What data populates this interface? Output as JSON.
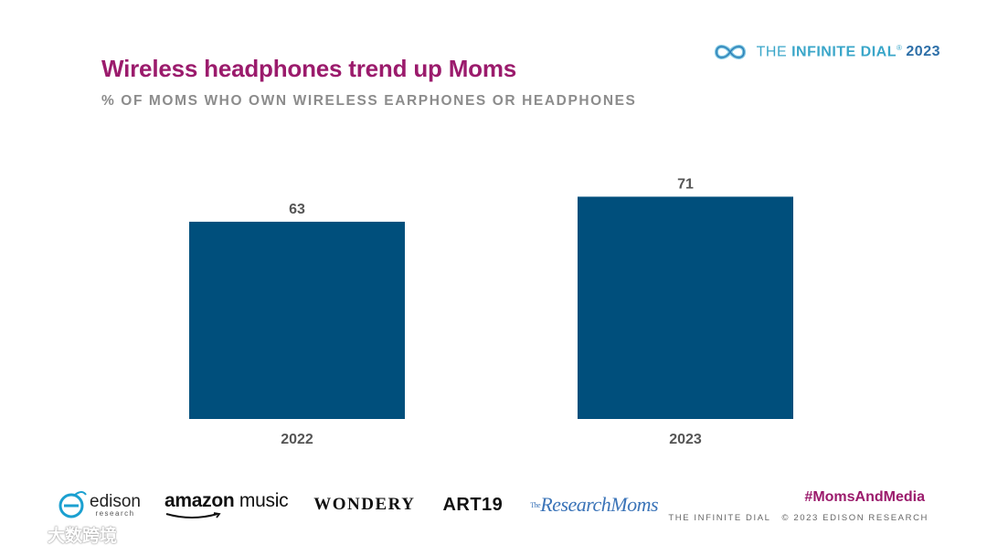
{
  "header": {
    "title": "Wireless headphones trend up Moms",
    "subtitle": "% OF MOMS WHO OWN WIRELESS EARPHONES OR HEADPHONES"
  },
  "brand": {
    "part1": "THE ",
    "part2": "INFINITE DIAL",
    "mark": "®",
    "year": "2023",
    "icon": "infinity-icon"
  },
  "chart_data": {
    "type": "bar",
    "categories": [
      "2022",
      "2023"
    ],
    "values": [
      63,
      71
    ],
    "title": "Wireless headphones trend up Moms",
    "subtitle": "% OF MOMS WHO OWN WIRELESS EARPHONES OR HEADPHONES",
    "xlabel": "",
    "ylabel": "",
    "ylim": [
      0,
      100
    ],
    "grid": false,
    "legend": "none",
    "bar_color": "#004f7c"
  },
  "logos": {
    "edison": "edison",
    "edison_sub": "research",
    "amazon_a": "amazon",
    "amazon_b": " music",
    "wondery": "WONDERY",
    "art19": "ART19",
    "research_moms": "ResearchMoms",
    "research_moms_small": "The"
  },
  "footer": {
    "hashtag": "#MomsAndMedia",
    "left": "THE INFINITE DIAL",
    "right": "© 2023 EDISON RESEARCH"
  },
  "watermark": {
    "text": "大数跨境"
  },
  "colors": {
    "accent": "#9b1b6c",
    "bar": "#004f7c",
    "brand": "#3aa6c9"
  }
}
